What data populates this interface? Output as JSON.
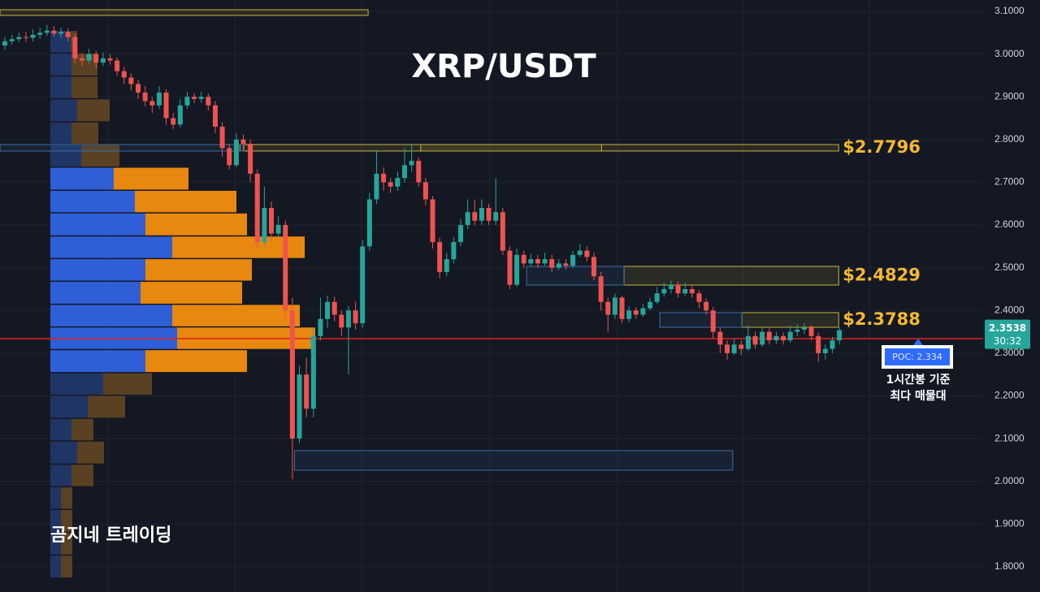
{
  "chart_data": {
    "type": "candlestick",
    "title": "XRP/USDT",
    "watermark": "곰지네 트레이딩",
    "up_color": "#26a69a",
    "down_color": "#ef5350",
    "xlim": [
      -0.7,
      139.5
    ],
    "ylim": [
      1.741,
      3.1266
    ],
    "yticks": [
      {
        "value": 3.1,
        "label": "3.1000"
      },
      {
        "value": 3.0,
        "label": "3.0000"
      },
      {
        "value": 2.9,
        "label": "2.9000"
      },
      {
        "value": 2.8,
        "label": "2.8000"
      },
      {
        "value": 2.7,
        "label": "2.7000"
      },
      {
        "value": 2.6,
        "label": "2.6000"
      },
      {
        "value": 2.5,
        "label": "2.5000"
      },
      {
        "value": 2.4,
        "label": "2.4000"
      },
      {
        "value": 2.3,
        "label": "2.3000"
      },
      {
        "value": 2.2,
        "label": "2.2000"
      },
      {
        "value": 2.1,
        "label": "2.1000"
      },
      {
        "value": 2.0,
        "label": "2.0000"
      },
      {
        "value": 1.9,
        "label": "1.9000"
      },
      {
        "value": 1.8,
        "label": "1.8000"
      }
    ],
    "grid": true,
    "open": [
      3.02,
      3.03,
      3.035,
      3.04,
      3.038,
      3.045,
      3.05,
      3.055,
      3.048,
      3.052,
      3.04,
      2.99,
      2.985,
      3.0,
      2.98,
      2.99,
      2.985,
      2.96,
      2.945,
      2.93,
      2.91,
      2.89,
      2.88,
      2.91,
      2.85,
      2.835,
      2.88,
      2.9,
      2.895,
      2.9,
      2.88,
      2.83,
      2.78,
      2.74,
      2.8,
      2.79,
      2.72,
      2.56,
      2.64,
      2.58,
      2.6,
      2.4,
      2.1,
      2.25,
      2.17,
      2.34,
      2.38,
      2.42,
      2.39,
      2.36,
      2.4,
      2.37,
      2.55,
      2.66,
      2.72,
      2.7,
      2.69,
      2.71,
      2.74,
      2.75,
      2.7,
      2.66,
      2.56,
      2.49,
      2.52,
      2.56,
      2.6,
      2.63,
      2.61,
      2.64,
      2.61,
      2.63,
      2.54,
      2.46,
      2.53,
      2.51,
      2.52,
      2.51,
      2.52,
      2.5,
      2.51,
      2.505,
      2.53,
      2.54,
      2.525,
      2.48,
      2.42,
      2.39,
      2.43,
      2.38,
      2.4,
      2.39,
      2.405,
      2.42,
      2.44,
      2.45,
      2.46,
      2.44,
      2.45,
      2.44,
      2.42,
      2.4,
      2.35,
      2.32,
      2.3,
      2.32,
      2.31,
      2.34,
      2.32,
      2.35,
      2.33,
      2.34,
      2.33,
      2.35,
      2.355,
      2.36,
      2.34,
      2.3,
      2.31,
      2.33
    ],
    "high": [
      3.04,
      3.045,
      3.05,
      3.052,
      3.058,
      3.062,
      3.068,
      3.065,
      3.062,
      3.06,
      3.048,
      3.002,
      3.012,
      3.008,
      3.004,
      3.0,
      2.992,
      2.97,
      2.955,
      2.94,
      2.925,
      2.9,
      2.925,
      2.918,
      2.862,
      2.895,
      2.912,
      2.908,
      2.912,
      2.908,
      2.89,
      2.84,
      2.79,
      2.815,
      2.812,
      2.8,
      2.73,
      2.69,
      2.655,
      2.62,
      2.61,
      2.43,
      2.27,
      2.29,
      2.36,
      2.43,
      2.435,
      2.432,
      2.4,
      2.41,
      2.42,
      2.565,
      2.675,
      2.775,
      2.735,
      2.71,
      2.725,
      2.78,
      2.79,
      2.758,
      2.71,
      2.668,
      2.57,
      2.535,
      2.572,
      2.615,
      2.66,
      2.66,
      2.66,
      2.65,
      2.71,
      2.64,
      2.55,
      2.545,
      2.54,
      2.532,
      2.53,
      2.535,
      2.53,
      2.52,
      2.52,
      2.54,
      2.555,
      2.55,
      2.535,
      2.49,
      2.43,
      2.44,
      2.435,
      2.41,
      2.408,
      2.415,
      2.43,
      2.455,
      2.465,
      2.47,
      2.468,
      2.465,
      2.46,
      2.448,
      2.428,
      2.408,
      2.36,
      2.33,
      2.335,
      2.33,
      2.365,
      2.35,
      2.36,
      2.358,
      2.35,
      2.348,
      2.365,
      2.368,
      2.37,
      2.366,
      2.348,
      2.32,
      2.338,
      2.36
    ],
    "low": [
      3.01,
      3.022,
      3.028,
      3.028,
      3.03,
      3.036,
      3.042,
      3.04,
      3.038,
      3.03,
      2.978,
      2.972,
      2.978,
      2.968,
      2.972,
      2.975,
      2.95,
      2.93,
      2.915,
      2.895,
      2.878,
      2.862,
      2.872,
      2.835,
      2.825,
      2.828,
      2.872,
      2.885,
      2.886,
      2.868,
      2.815,
      2.76,
      2.73,
      2.735,
      2.775,
      2.7,
      2.545,
      2.55,
      2.56,
      2.57,
      2.38,
      2.005,
      2.09,
      2.15,
      2.15,
      2.33,
      2.36,
      2.375,
      2.34,
      2.25,
      2.355,
      2.36,
      2.54,
      2.65,
      2.68,
      2.675,
      2.68,
      2.7,
      2.725,
      2.69,
      2.645,
      2.545,
      2.475,
      2.48,
      2.51,
      2.55,
      2.59,
      2.6,
      2.6,
      2.6,
      2.6,
      2.53,
      2.45,
      2.455,
      2.5,
      2.505,
      2.5,
      2.505,
      2.49,
      2.495,
      2.495,
      2.5,
      2.525,
      2.515,
      2.47,
      2.4,
      2.35,
      2.38,
      2.37,
      2.372,
      2.38,
      2.385,
      2.4,
      2.415,
      2.432,
      2.44,
      2.43,
      2.435,
      2.43,
      2.405,
      2.39,
      2.335,
      2.3,
      2.285,
      2.295,
      2.295,
      2.305,
      2.31,
      2.315,
      2.32,
      2.322,
      2.32,
      2.325,
      2.34,
      2.345,
      2.33,
      2.28,
      2.285,
      2.3,
      2.32
    ],
    "close": [
      3.03,
      3.035,
      3.04,
      3.038,
      3.045,
      3.05,
      3.055,
      3.048,
      3.052,
      3.04,
      2.99,
      2.985,
      3.0,
      2.98,
      2.99,
      2.985,
      2.96,
      2.945,
      2.93,
      2.91,
      2.89,
      2.88,
      2.91,
      2.85,
      2.835,
      2.88,
      2.9,
      2.895,
      2.9,
      2.88,
      2.83,
      2.78,
      2.74,
      2.8,
      2.79,
      2.72,
      2.56,
      2.64,
      2.58,
      2.6,
      2.4,
      2.1,
      2.25,
      2.17,
      2.34,
      2.38,
      2.42,
      2.39,
      2.36,
      2.4,
      2.37,
      2.55,
      2.66,
      2.72,
      2.7,
      2.69,
      2.71,
      2.74,
      2.75,
      2.7,
      2.66,
      2.56,
      2.49,
      2.52,
      2.56,
      2.6,
      2.63,
      2.61,
      2.64,
      2.61,
      2.63,
      2.54,
      2.46,
      2.53,
      2.51,
      2.52,
      2.51,
      2.52,
      2.5,
      2.51,
      2.505,
      2.53,
      2.54,
      2.525,
      2.48,
      2.42,
      2.39,
      2.43,
      2.38,
      2.4,
      2.39,
      2.405,
      2.42,
      2.44,
      2.45,
      2.46,
      2.44,
      2.45,
      2.44,
      2.42,
      2.4,
      2.35,
      2.32,
      2.3,
      2.32,
      2.31,
      2.34,
      2.32,
      2.35,
      2.33,
      2.34,
      2.33,
      2.35,
      2.355,
      2.36,
      2.34,
      2.3,
      2.31,
      2.33,
      2.3538
    ],
    "countdown": "30:32",
    "volume_profile": {
      "bins": [
        3.054,
        3.001,
        2.947,
        2.894,
        2.84,
        2.787,
        2.734,
        2.68,
        2.627,
        2.573,
        2.52,
        2.467,
        2.413,
        2.36,
        2.307,
        2.253,
        2.2,
        2.146,
        2.093,
        2.039,
        1.986,
        1.933,
        1.879,
        1.826,
        1.772
      ],
      "buy": [
        25,
        26,
        26,
        33,
        26,
        38,
        78,
        104,
        117,
        150,
        117,
        111,
        150,
        156,
        117,
        65,
        46,
        26,
        33,
        26,
        13,
        13,
        13,
        13
      ],
      "sell": [
        8,
        32,
        32,
        40,
        33,
        47,
        92,
        125,
        125,
        163,
        131,
        125,
        157,
        170,
        125,
        60,
        46,
        27,
        33,
        27,
        14,
        14,
        14,
        14
      ],
      "value_area": [
        6,
        14
      ],
      "buy_color": "#2f5fd6",
      "sell_color": "#e8880f",
      "buy_color_dim": "#1f3566",
      "sell_color_dim": "#5a4122"
    },
    "zones": [
      {
        "x": [
          -0.7,
          51.8
        ],
        "y": [
          3.0905,
          3.1038
        ],
        "color": "#c9b23a"
      },
      {
        "x": [
          33.5,
          118.9
        ],
        "y": [
          2.7731,
          2.7883
        ],
        "color": "#c9b23a",
        "label": "$2.7796"
      },
      {
        "x": [
          59.3,
          85.1
        ],
        "y": [
          2.7731,
          2.7883
        ],
        "color": "#c9b23a"
      },
      {
        "x": [
          -0.7,
          34.1
        ],
        "y": [
          2.7731,
          2.7883
        ],
        "color": "#3d6fa8"
      },
      {
        "x": [
          88.3,
          118.9
        ],
        "y": [
          2.4595,
          2.5032
        ],
        "color": "#c9b23a",
        "label": "$2.4829"
      },
      {
        "x": [
          74.4,
          88.3
        ],
        "y": [
          2.4595,
          2.5032
        ],
        "color": "#3d6fa8"
      },
      {
        "x": [
          105.1,
          118.9
        ],
        "y": [
          2.3606,
          2.3949
        ],
        "color": "#c9b23a",
        "label": "$2.3788"
      },
      {
        "x": [
          93.4,
          105.1
        ],
        "y": [
          2.3606,
          2.3949
        ],
        "color": "#3d6fa8"
      },
      {
        "x": [
          41.3,
          103.8
        ],
        "y": [
          2.0262,
          2.0718
        ],
        "color": "#3d6fa8"
      }
    ],
    "poc": {
      "value": 2.334,
      "label": "POC: 2.334",
      "color": "#e0201f"
    },
    "annotation": [
      "1시간봉 기준",
      "최다 매물대"
    ]
  }
}
